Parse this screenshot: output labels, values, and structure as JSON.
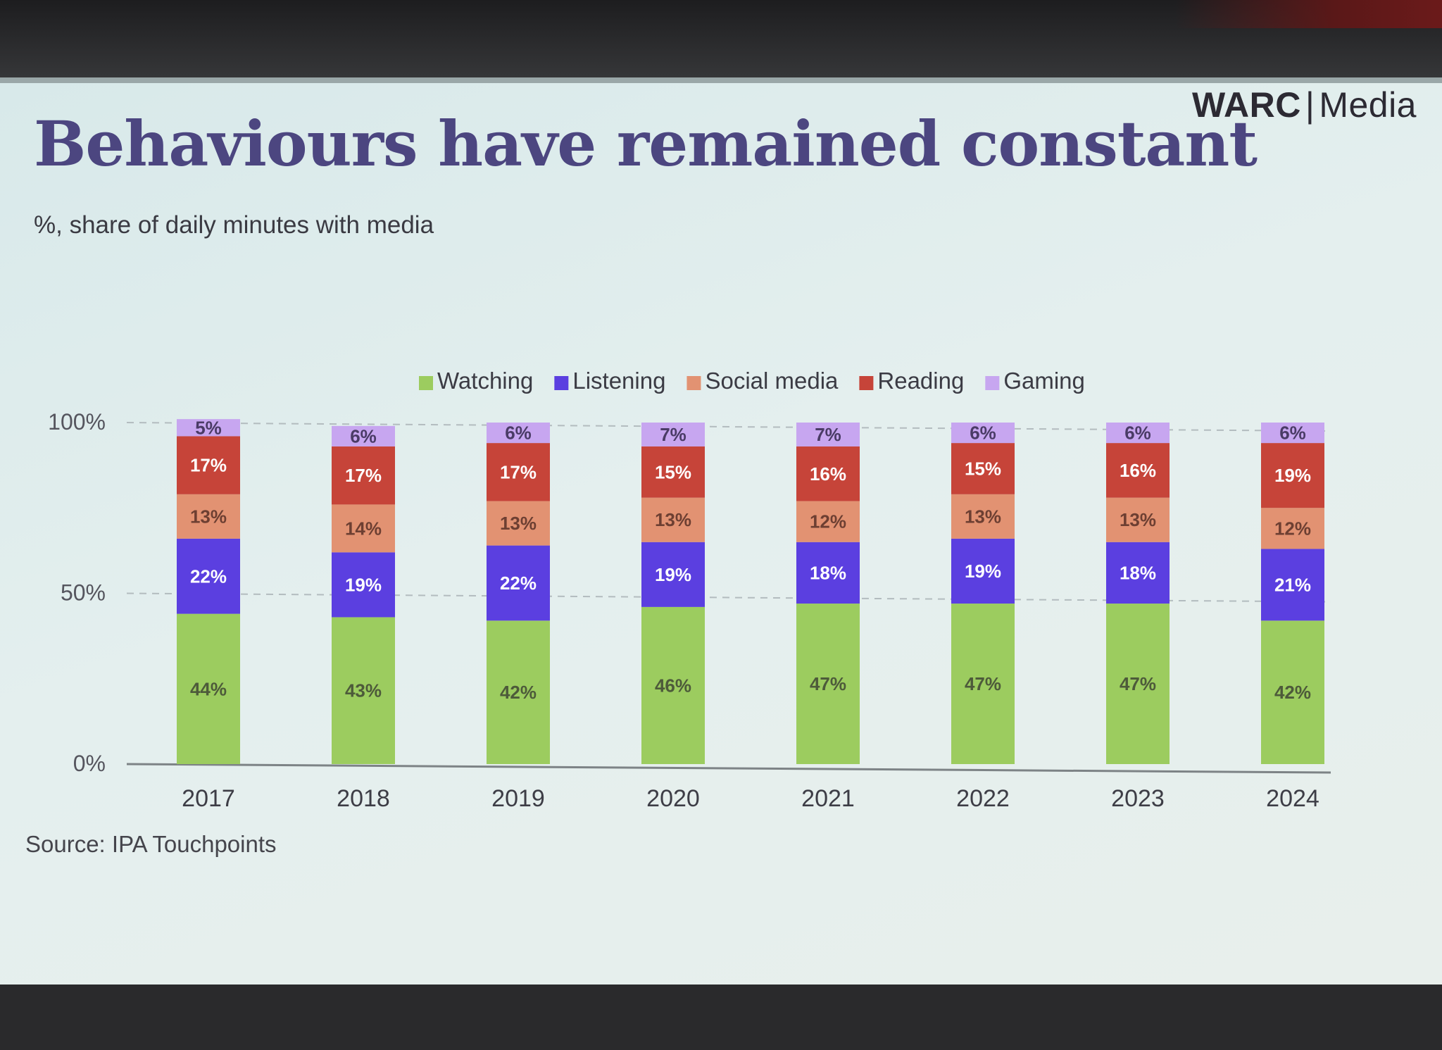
{
  "header": {
    "brand_primary": "WARC",
    "brand_separator": "|",
    "brand_secondary": "Media",
    "title": "Behaviours have remained constant",
    "subtitle": "%, share of daily minutes with media"
  },
  "footer": {
    "source": "Source: IPA Touchpoints"
  },
  "chart_data": {
    "type": "bar",
    "stacked": true,
    "categories": [
      "2017",
      "2018",
      "2019",
      "2020",
      "2021",
      "2022",
      "2023",
      "2024"
    ],
    "series": [
      {
        "name": "Watching",
        "color": "#9ccc5f",
        "label_color": "#4d5a3a",
        "values": [
          44,
          43,
          42,
          46,
          47,
          47,
          47,
          42
        ]
      },
      {
        "name": "Listening",
        "color": "#5b3fe0",
        "label_color": "#ffffff",
        "values": [
          22,
          19,
          22,
          19,
          18,
          19,
          18,
          21
        ]
      },
      {
        "name": "Social media",
        "color": "#e29272",
        "label_color": "#6d3f32",
        "values": [
          13,
          14,
          13,
          13,
          12,
          13,
          13,
          12
        ]
      },
      {
        "name": "Reading",
        "color": "#c64439",
        "label_color": "#ffffff",
        "values": [
          17,
          17,
          17,
          15,
          16,
          15,
          16,
          19
        ]
      },
      {
        "name": "Gaming",
        "color": "#c7a6f0",
        "label_color": "#4a3b66",
        "values": [
          5,
          6,
          6,
          7,
          7,
          6,
          6,
          6
        ]
      }
    ],
    "value_suffix": "%",
    "yticks": [
      "0%",
      "50%",
      "100%"
    ],
    "ylim": [
      0,
      100
    ],
    "grid": true,
    "legend_position": "top"
  }
}
